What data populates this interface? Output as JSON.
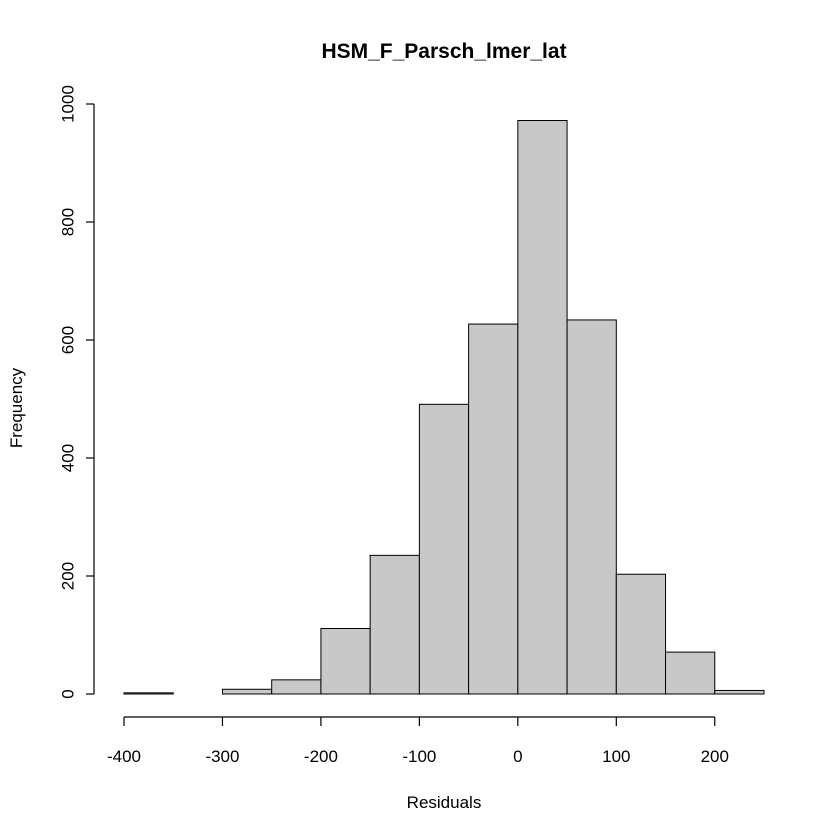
{
  "chart_data": {
    "type": "bar",
    "title": "HSM_F_Parsch_lmer_lat",
    "xlabel": "Residuals",
    "ylabel": "Frequency",
    "bar_color": "#c8c8c8",
    "bin_edges": [
      -400,
      -350,
      -300,
      -250,
      -200,
      -150,
      -100,
      -50,
      0,
      50,
      100,
      150,
      200,
      250
    ],
    "values": [
      2,
      0,
      8,
      24,
      111,
      235,
      491,
      627,
      972,
      634,
      203,
      71,
      6
    ],
    "xlim": [
      -400,
      250
    ],
    "ylim": [
      0,
      1000
    ],
    "x_ticks": [
      -400,
      -300,
      -200,
      -100,
      0,
      100,
      200
    ],
    "y_ticks": [
      0,
      200,
      400,
      600,
      800,
      1000
    ],
    "grid": false
  }
}
